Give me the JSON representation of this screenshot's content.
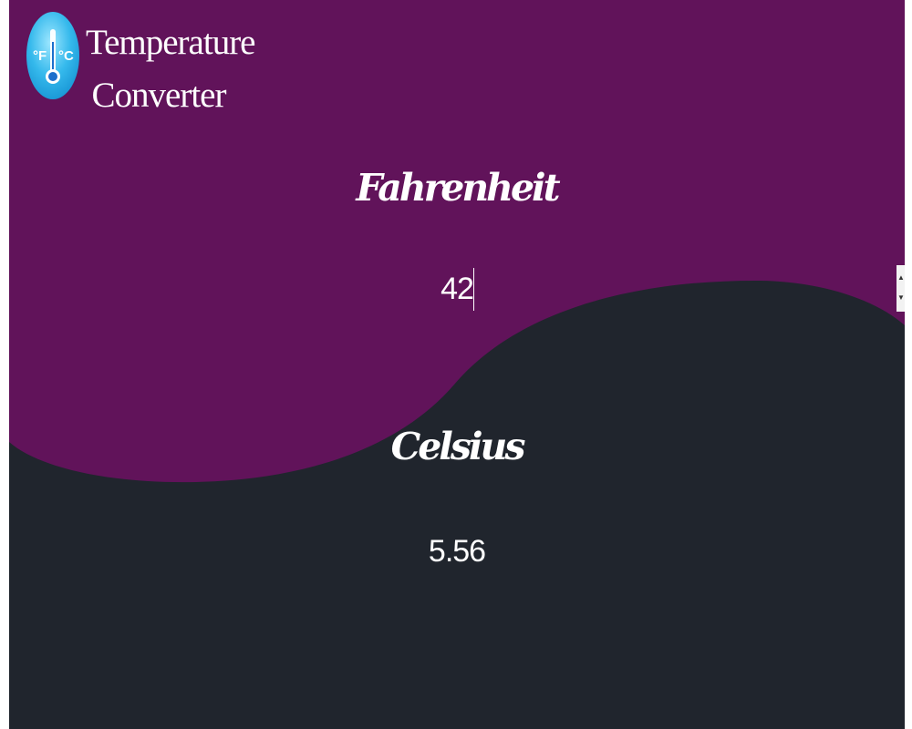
{
  "app": {
    "title_line1": "Temperature",
    "title_line2": "Converter",
    "logo": {
      "icon": "thermometer-icon",
      "left_unit": "°F",
      "right_unit": "°C"
    }
  },
  "fahrenheit": {
    "label": "Fahrenheit",
    "value": "42"
  },
  "celsius": {
    "label": "Celsius",
    "value": "5.56"
  },
  "colors": {
    "top_background": "#61135a",
    "bottom_background": "#20252d",
    "text": "#ffffff",
    "logo_blue": "#2fb6ea"
  }
}
